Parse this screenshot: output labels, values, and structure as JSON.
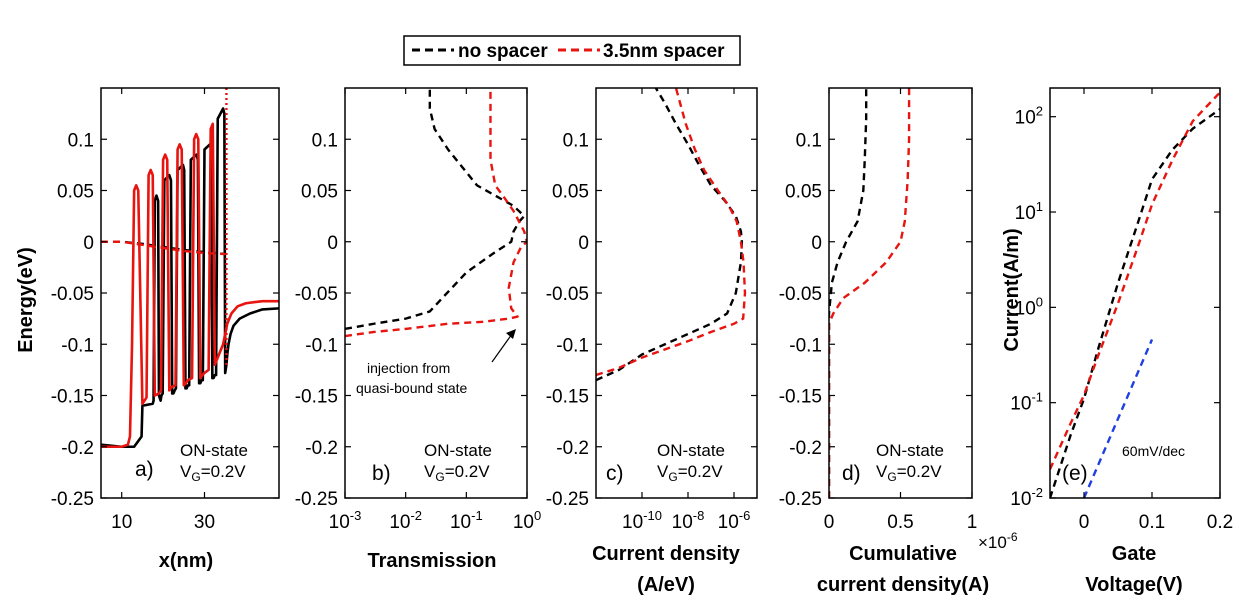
{
  "legend": {
    "items": [
      {
        "label": "no spacer",
        "color": "#000000"
      },
      {
        "label": "3.5nm spacer",
        "color": "#e8140f"
      }
    ]
  },
  "colors": {
    "no_spacer": "#000000",
    "spacer": "#e8140f",
    "slope_line": "#1f3fe0"
  },
  "chart_data": [
    {
      "id": "a",
      "type": "line",
      "panel_label": "a)",
      "annotation": [
        "ON-state",
        "V_G=0.2V"
      ],
      "xlabel": "x(nm)",
      "ylabel": "Energy(eV)",
      "xlim": [
        5,
        48
      ],
      "ylim": [
        -0.25,
        0.15
      ],
      "xscale": "linear",
      "xticks": [
        10,
        30
      ],
      "xticklabels": [
        "10",
        "30"
      ],
      "yticks": [
        -0.25,
        -0.2,
        -0.15,
        -0.1,
        -0.05,
        0,
        0.05,
        0.1
      ],
      "yticklabels": [
        "-0.25",
        "-0.2",
        "-0.15",
        "-0.1",
        "-0.05",
        "0",
        "0.05",
        "0.1"
      ],
      "series": [
        {
          "name": "no spacer",
          "style": "solid",
          "color": "#000000",
          "x": [
            5,
            10,
            13,
            14.8,
            15,
            17.5,
            17.7,
            18,
            18.4,
            18.8,
            19,
            19.4,
            19.6,
            19.9,
            20.3,
            21.5,
            21.9,
            22.2,
            22.5,
            22.8,
            23.1,
            23.5,
            24.8,
            25.1,
            25.4,
            25.7,
            26,
            26.3,
            26.7,
            28.1,
            28.4,
            28.7,
            29,
            29.3,
            29.6,
            30,
            31.3,
            31.6,
            31.9,
            32.2,
            32.5,
            32.8,
            33.2,
            34.5,
            34.8,
            35,
            35.3,
            35.5,
            35.8,
            36.3,
            37,
            38.5,
            41,
            44,
            48
          ],
          "y": [
            -0.198,
            -0.2,
            -0.2,
            -0.19,
            -0.16,
            -0.158,
            -0.155,
            0.04,
            0.045,
            0.04,
            -0.15,
            -0.155,
            -0.15,
            -0.148,
            0.06,
            0.065,
            0.06,
            -0.148,
            -0.148,
            -0.145,
            -0.143,
            0.07,
            0.075,
            0.07,
            -0.143,
            -0.143,
            -0.14,
            -0.14,
            0.08,
            0.085,
            0.08,
            -0.138,
            -0.138,
            -0.135,
            -0.135,
            0.09,
            0.095,
            0.09,
            -0.133,
            -0.133,
            -0.13,
            -0.13,
            0.12,
            0.13,
            0.125,
            -0.128,
            -0.12,
            -0.11,
            -0.1,
            -0.09,
            -0.082,
            -0.075,
            -0.07,
            -0.066,
            -0.065
          ]
        },
        {
          "name": "no spacer channel",
          "style": "dashed",
          "color": "#000000",
          "x": [
            5,
            10,
            15,
            20,
            25,
            30,
            35
          ],
          "y": [
            0.0,
            0.0,
            -0.002,
            -0.005,
            -0.008,
            -0.01,
            -0.012
          ]
        },
        {
          "name": "3.5nm spacer",
          "style": "solid",
          "color": "#e8140f",
          "x": [
            5,
            10,
            11.5,
            12,
            12.5,
            13,
            13.5,
            14,
            15,
            15.5,
            16,
            16.5,
            17,
            17.5,
            18,
            19,
            19.5,
            20,
            20.5,
            21,
            21.5,
            22,
            23,
            23.5,
            24,
            24.5,
            25,
            25.5,
            26,
            27,
            27.5,
            28,
            28.5,
            29,
            29.5,
            30,
            31,
            31.5,
            32,
            32.5,
            33,
            33.5,
            34,
            34.5,
            35,
            35.5,
            36.5,
            38,
            40,
            44,
            48
          ],
          "y": [
            -0.2,
            -0.2,
            -0.198,
            -0.19,
            -0.1,
            0.05,
            0.055,
            0.05,
            -0.158,
            -0.155,
            -0.152,
            0.065,
            0.07,
            0.065,
            -0.15,
            -0.148,
            -0.145,
            0.08,
            0.085,
            0.08,
            -0.145,
            -0.142,
            -0.14,
            0.09,
            0.095,
            0.09,
            -0.14,
            -0.138,
            -0.135,
            -0.133,
            0.1,
            0.105,
            0.1,
            -0.133,
            -0.13,
            -0.128,
            -0.125,
            0.11,
            0.115,
            -0.12,
            -0.115,
            -0.11,
            -0.105,
            -0.1,
            -0.09,
            -0.08,
            -0.07,
            -0.063,
            -0.06,
            -0.058,
            -0.058
          ]
        },
        {
          "name": "3.5nm spacer channel",
          "style": "dashed",
          "color": "#e8140f",
          "x": [
            5,
            10,
            15,
            20,
            25,
            30,
            35
          ],
          "y": [
            0.0,
            0.0,
            -0.003,
            -0.006,
            -0.009,
            -0.011,
            -0.012
          ]
        },
        {
          "name": "drain marker",
          "style": "dotted",
          "color": "#e8140f",
          "x": [
            35.3,
            35.3
          ],
          "y": [
            0.15,
            -0.12
          ]
        }
      ]
    },
    {
      "id": "b",
      "type": "line",
      "panel_label": "b)",
      "annotation": [
        "ON-state",
        "V_G=0.2V"
      ],
      "xlabel": "Transmission",
      "ylabel": "",
      "xlim": [
        0.001,
        1
      ],
      "ylim": [
        -0.25,
        0.15
      ],
      "xscale": "log",
      "xticks": [
        0.001,
        0.01,
        0.1,
        1
      ],
      "xticklabels": [
        "10^-3",
        "10^-2",
        "10^-1",
        "10^0"
      ],
      "yticks": [
        -0.25,
        -0.2,
        -0.15,
        -0.1,
        -0.05,
        0,
        0.05,
        0.1
      ],
      "yticklabels": [
        "-0.25",
        "-0.2",
        "-0.15",
        "-0.1",
        "-0.05",
        "0",
        "0.05",
        "0.1"
      ],
      "text_annotation": [
        "injection from",
        "quasi-bound state"
      ],
      "series": [
        {
          "name": "no spacer",
          "style": "dashed",
          "color": "#000000",
          "x": [
            0.001,
            0.003,
            0.01,
            0.025,
            0.04,
            0.1,
            0.3,
            0.55,
            0.6,
            0.75,
            0.9,
            0.6,
            0.3,
            0.15,
            0.08,
            0.05,
            0.03,
            0.025,
            0.025,
            0.025
          ],
          "y": [
            -0.085,
            -0.08,
            -0.075,
            -0.068,
            -0.055,
            -0.03,
            -0.01,
            0.0,
            0.01,
            0.02,
            0.025,
            0.035,
            0.045,
            0.055,
            0.075,
            0.09,
            0.11,
            0.13,
            0.14,
            0.15
          ]
        },
        {
          "name": "3.5nm spacer",
          "style": "dashed",
          "color": "#e8140f",
          "x": [
            0.001,
            0.003,
            0.01,
            0.05,
            0.2,
            0.5,
            0.7,
            0.55,
            0.5,
            0.6,
            0.8,
            1.0,
            0.9,
            0.6,
            0.4,
            0.3,
            0.25,
            0.25,
            0.25
          ],
          "y": [
            -0.092,
            -0.088,
            -0.085,
            -0.08,
            -0.078,
            -0.075,
            -0.073,
            -0.065,
            -0.045,
            -0.02,
            -0.005,
            0.0,
            0.01,
            0.03,
            0.045,
            0.055,
            0.08,
            0.12,
            0.15
          ]
        }
      ]
    },
    {
      "id": "c",
      "type": "line",
      "panel_label": "c)",
      "annotation": [
        "ON-state",
        "V_G=0.2V"
      ],
      "xlabel": "Current density (A/eV)",
      "ylabel": "",
      "xlim": [
        1e-12,
        1e-05
      ],
      "ylim": [
        -0.25,
        0.15
      ],
      "xscale": "log",
      "xticks": [
        1e-10,
        1e-08,
        1e-06
      ],
      "xticklabels": [
        "10^-10",
        "10^-8",
        "10^-6"
      ],
      "yticks": [
        -0.25,
        -0.2,
        -0.15,
        -0.1,
        -0.05,
        0,
        0.05,
        0.1
      ],
      "yticklabels": [
        "-0.25",
        "-0.2",
        "-0.15",
        "-0.1",
        "-0.05",
        "0",
        "0.05",
        "0.1"
      ],
      "series": [
        {
          "name": "no spacer",
          "style": "dashed",
          "color": "#000000",
          "x": [
            1e-12,
            1e-11,
            1e-10,
            1e-09,
            1e-08,
            1e-07,
            5e-07,
            1.2e-06,
            2e-06,
            2.2e-06,
            2e-06,
            1.2e-06,
            4e-07,
            1e-07,
            3e-08,
            1e-08,
            3e-09,
            1e-09,
            4e-10
          ],
          "y": [
            -0.135,
            -0.125,
            -0.11,
            -0.1,
            -0.09,
            -0.08,
            -0.07,
            -0.05,
            -0.02,
            0.0,
            0.01,
            0.025,
            0.04,
            0.055,
            0.075,
            0.095,
            0.115,
            0.135,
            0.15
          ]
        },
        {
          "name": "3.5nm spacer",
          "style": "dashed",
          "color": "#e8140f",
          "x": [
            1e-12,
            1e-11,
            1e-10,
            1e-09,
            1e-08,
            1e-07,
            1e-06,
            2.5e-06,
            3e-06,
            2.6e-06,
            2e-06,
            1.3e-06,
            6e-07,
            2e-07,
            5e-08,
            2e-08,
            8e-09,
            3e-09
          ],
          "y": [
            -0.13,
            -0.123,
            -0.113,
            -0.105,
            -0.097,
            -0.088,
            -0.08,
            -0.075,
            -0.05,
            -0.02,
            0.0,
            0.02,
            0.035,
            0.05,
            0.07,
            0.09,
            0.115,
            0.15
          ]
        }
      ]
    },
    {
      "id": "d",
      "type": "line",
      "panel_label": "d)",
      "annotation": [
        "ON-state",
        "V_G=0.2V"
      ],
      "xlabel": "Cumulative current density(A)",
      "ylabel": "",
      "xlim": [
        0,
        1
      ],
      "ylim": [
        -0.25,
        0.15
      ],
      "xscale": "linear",
      "x_multiplier": "×10^-6",
      "xticks": [
        0,
        0.5,
        1
      ],
      "xticklabels": [
        "0",
        "0.5",
        "1"
      ],
      "yticks": [
        -0.25,
        -0.2,
        -0.15,
        -0.1,
        -0.05,
        0,
        0.05,
        0.1
      ],
      "yticklabels": [
        "-0.25",
        "-0.2",
        "-0.15",
        "-0.1",
        "-0.05",
        "0",
        "0.05",
        "0.1"
      ],
      "series": [
        {
          "name": "no spacer",
          "style": "dashed",
          "color": "#000000",
          "x": [
            0,
            0,
            0.02,
            0.06,
            0.12,
            0.2,
            0.24,
            0.25,
            0.26,
            0.26
          ],
          "y": [
            -0.25,
            -0.07,
            -0.04,
            -0.02,
            0.0,
            0.02,
            0.05,
            0.08,
            0.12,
            0.15
          ]
        },
        {
          "name": "3.5nm spacer",
          "style": "dashed",
          "color": "#e8140f",
          "x": [
            0,
            0,
            0.03,
            0.1,
            0.25,
            0.4,
            0.5,
            0.53,
            0.55,
            0.56,
            0.56
          ],
          "y": [
            -0.25,
            -0.08,
            -0.07,
            -0.055,
            -0.04,
            -0.02,
            0.0,
            0.02,
            0.06,
            0.1,
            0.15
          ]
        }
      ]
    },
    {
      "id": "e",
      "type": "line",
      "panel_label": "(e)",
      "annotation": [
        "60mV/dec"
      ],
      "xlabel": "Gate Voltage(V)",
      "ylabel": "Current(A/m)",
      "xlim": [
        -0.05,
        0.2
      ],
      "ylim": [
        0.01,
        200
      ],
      "yscale": "log",
      "xticks": [
        0,
        0.1,
        0.2
      ],
      "xticklabels": [
        "0",
        "0.1",
        "0.2"
      ],
      "yticks": [
        0.01,
        0.1,
        1,
        10,
        100
      ],
      "yticklabels": [
        "10^-2",
        "10^-1",
        "10^0",
        "10^1",
        "10^2"
      ],
      "series": [
        {
          "name": "no spacer",
          "style": "dashed",
          "color": "#000000",
          "x": [
            -0.05,
            -0.02,
            0.0,
            0.02,
            0.05,
            0.08,
            0.1,
            0.13,
            0.16,
            0.2
          ],
          "y": [
            0.01,
            0.045,
            0.11,
            0.35,
            1.8,
            8,
            22,
            45,
            75,
            120
          ]
        },
        {
          "name": "3.5nm spacer",
          "style": "dashed",
          "color": "#e8140f",
          "x": [
            -0.05,
            -0.02,
            0.0,
            0.02,
            0.05,
            0.08,
            0.1,
            0.13,
            0.16,
            0.2
          ],
          "y": [
            0.02,
            0.06,
            0.12,
            0.3,
            1.1,
            4.5,
            12,
            35,
            90,
            180
          ]
        },
        {
          "name": "60mV/dec",
          "style": "dashed",
          "color": "#1f3fe0",
          "x": [
            0.0,
            0.1
          ],
          "y": [
            0.01,
            0.46
          ]
        }
      ]
    }
  ]
}
